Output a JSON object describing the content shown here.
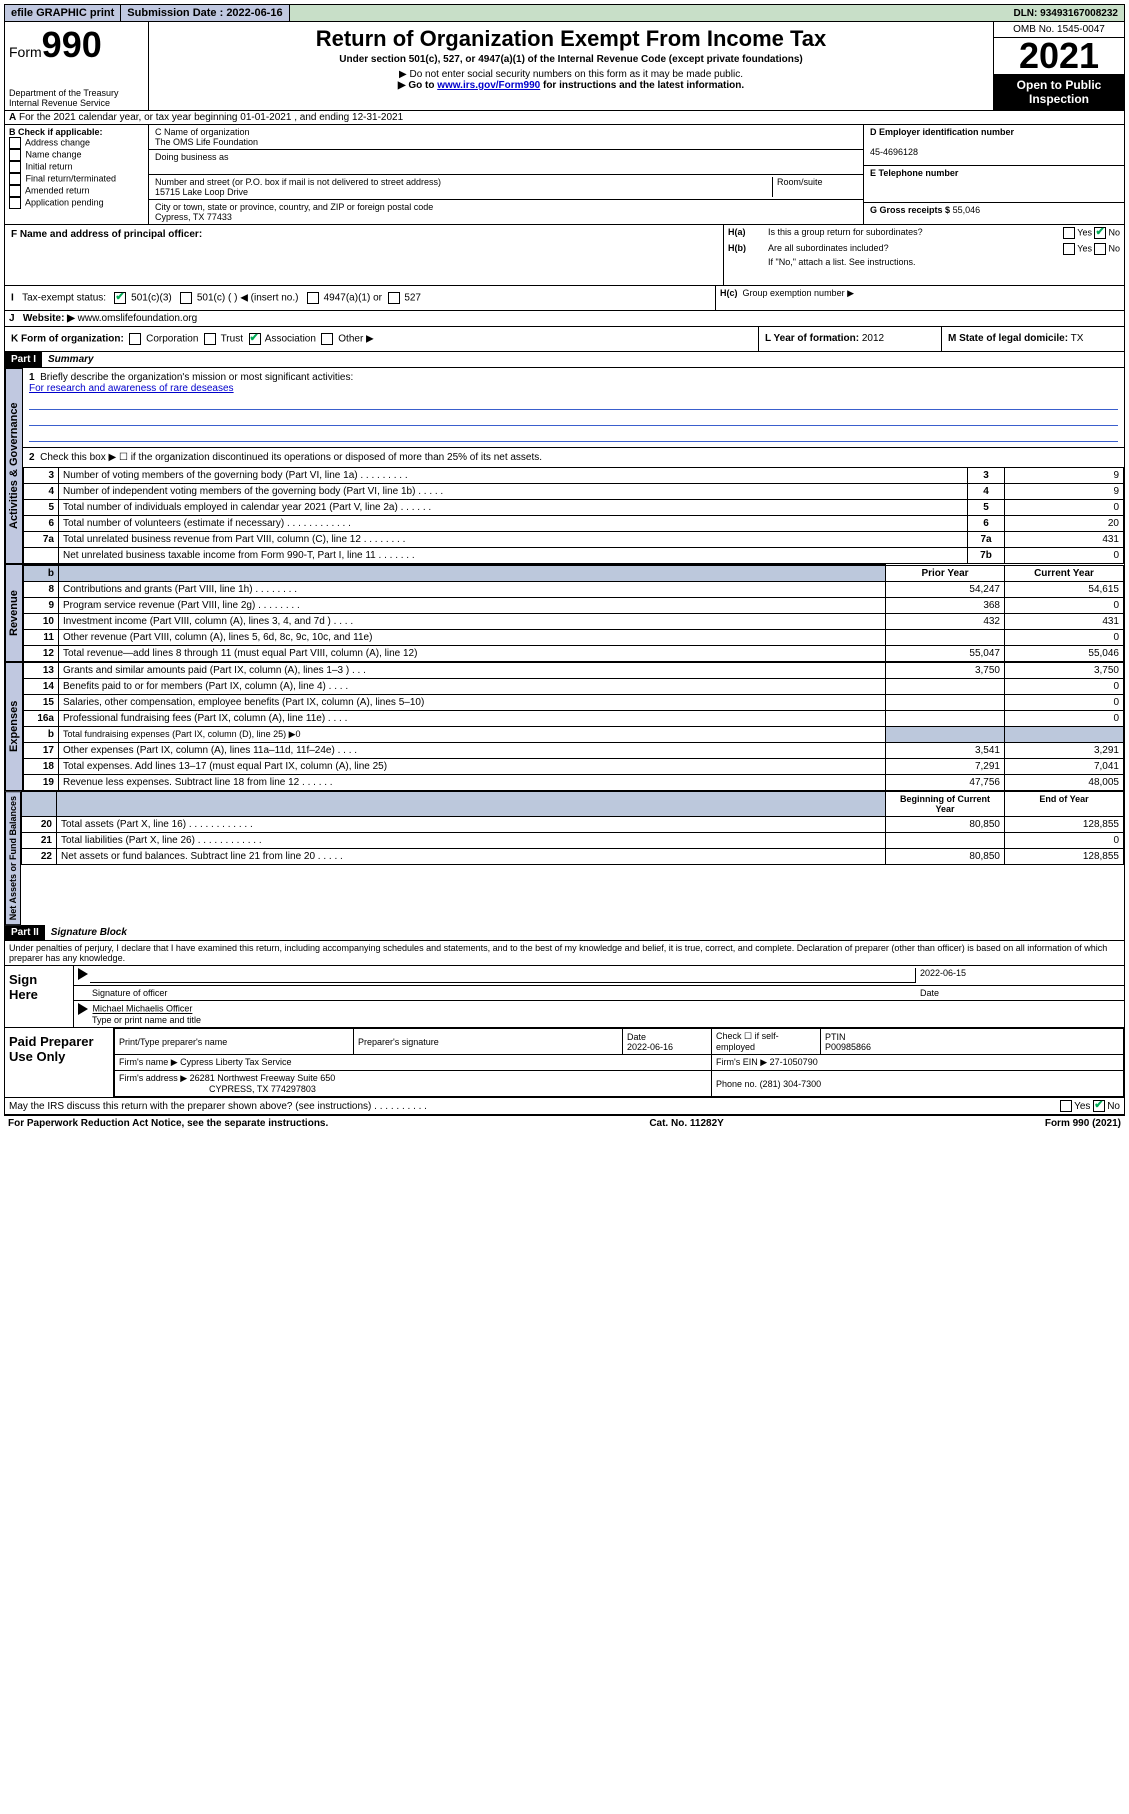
{
  "topbar": {
    "efile": "efile GRAPHIC print",
    "submission_label": "Submission Date : 2022-06-16",
    "dln": "DLN: 93493167008232"
  },
  "header": {
    "form_label": "Form",
    "form_number": "990",
    "title": "Return of Organization Exempt From Income Tax",
    "subtitle": "Under section 501(c), 527, or 4947(a)(1) of the Internal Revenue Code (except private foundations)",
    "note1": "▶ Do not enter social security numbers on this form as it may be made public.",
    "note2_pre": "▶ Go to ",
    "note2_link": "www.irs.gov/Form990",
    "note2_post": " for instructions and the latest information.",
    "dept": "Department of the Treasury",
    "irs": "Internal Revenue Service",
    "omb": "OMB No. 1545-0047",
    "year": "2021",
    "open": "Open to Public Inspection"
  },
  "rowA": "For the 2021 calendar year, or tax year beginning 01-01-2021   , and ending 12-31-2021",
  "boxB": {
    "title": "B Check if applicable:",
    "items": [
      "Address change",
      "Name change",
      "Initial return",
      "Final return/terminated",
      "Amended return",
      "Application pending"
    ]
  },
  "boxC": {
    "label_name": "C Name of organization",
    "name": "The OMS Life Foundation",
    "dba_label": "Doing business as",
    "addr_label": "Number and street (or P.O. box if mail is not delivered to street address)",
    "room_label": "Room/suite",
    "addr": "15715 Lake Loop Drive",
    "city_label": "City or town, state or province, country, and ZIP or foreign postal code",
    "city": "Cypress, TX  77433"
  },
  "boxD": {
    "label": "D Employer identification number",
    "value": "45-4696128"
  },
  "boxE": {
    "label": "E Telephone number",
    "value": ""
  },
  "boxG": {
    "label": "G Gross receipts $",
    "value": "55,046"
  },
  "boxF": {
    "label": "F  Name and address of principal officer:"
  },
  "boxH": {
    "ha": "Is this a group return for subordinates?",
    "hb": "Are all subordinates included?",
    "hb_note": "If \"No,\" attach a list. See instructions.",
    "hc": "Group exemption number ▶",
    "yes": "Yes",
    "no": "No"
  },
  "boxI": {
    "label": "Tax-exempt status:",
    "o1": "501(c)(3)",
    "o2": "501(c) (  ) ◀ (insert no.)",
    "o3": "4947(a)(1) or",
    "o4": "527"
  },
  "boxJ": {
    "label": "Website: ▶",
    "value": "www.omslifefoundation.org"
  },
  "boxK": {
    "label": "K Form of organization:",
    "o1": "Corporation",
    "o2": "Trust",
    "o3": "Association",
    "o4": "Other ▶"
  },
  "boxL": {
    "label": "L Year of formation:",
    "value": "2012"
  },
  "boxM": {
    "label": "M State of legal domicile:",
    "value": "TX"
  },
  "part1": {
    "tag": "Part I",
    "title": "Summary"
  },
  "mission": {
    "q": "Briefly describe the organization's mission or most significant activities:",
    "a": "For research and awareness of rare deseases"
  },
  "line2": "Check this box ▶ ☐  if the organization discontinued its operations or disposed of more than 25% of its net assets.",
  "governance": [
    {
      "n": "3",
      "d": "Number of voting members of the governing body (Part VI, line 1a)   .    .    .    .    .    .    .    .    .",
      "b": "3",
      "v": "9"
    },
    {
      "n": "4",
      "d": "Number of independent voting members of the governing body (Part VI, line 1b)   .    .    .    .    .",
      "b": "4",
      "v": "9"
    },
    {
      "n": "5",
      "d": "Total number of individuals employed in calendar year 2021 (Part V, line 2a)   .    .    .    .    .    .",
      "b": "5",
      "v": "0"
    },
    {
      "n": "6",
      "d": "Total number of volunteers (estimate if necessary)   .    .    .    .    .    .    .    .    .    .    .    .",
      "b": "6",
      "v": "20"
    },
    {
      "n": "7a",
      "d": "Total unrelated business revenue from Part VIII, column (C), line 12   .    .    .    .    .    .    .    .",
      "b": "7a",
      "v": "431"
    },
    {
      "n": "",
      "d": "Net unrelated business taxable income from Form 990-T, Part I, line 11   .    .    .    .    .    .    .",
      "b": "7b",
      "v": "0"
    }
  ],
  "col_headers": {
    "prior": "Prior Year",
    "current": "Current Year"
  },
  "revenue": [
    {
      "n": "8",
      "d": "Contributions and grants (Part VIII, line 1h)   .    .    .    .    .    .    .    .",
      "p": "54,247",
      "c": "54,615"
    },
    {
      "n": "9",
      "d": "Program service revenue (Part VIII, line 2g)   .    .    .    .    .    .    .    .",
      "p": "368",
      "c": "0"
    },
    {
      "n": "10",
      "d": "Investment income (Part VIII, column (A), lines 3, 4, and 7d )   .    .    .    .",
      "p": "432",
      "c": "431"
    },
    {
      "n": "11",
      "d": "Other revenue (Part VIII, column (A), lines 5, 6d, 8c, 9c, 10c, and 11e)",
      "p": "",
      "c": "0"
    },
    {
      "n": "12",
      "d": "Total revenue—add lines 8 through 11 (must equal Part VIII, column (A), line 12)",
      "p": "55,047",
      "c": "55,046"
    }
  ],
  "expenses": [
    {
      "n": "13",
      "d": "Grants and similar amounts paid (Part IX, column (A), lines 1–3 )   .    .    .",
      "p": "3,750",
      "c": "3,750"
    },
    {
      "n": "14",
      "d": "Benefits paid to or for members (Part IX, column (A), line 4)   .    .    .    .",
      "p": "",
      "c": "0"
    },
    {
      "n": "15",
      "d": "Salaries, other compensation, employee benefits (Part IX, column (A), lines 5–10)",
      "p": "",
      "c": "0"
    },
    {
      "n": "16a",
      "d": "Professional fundraising fees (Part IX, column (A), line 11e)   .    .    .    .",
      "p": "",
      "c": "0"
    },
    {
      "n": "b",
      "d": "Total fundraising expenses (Part IX, column (D), line 25) ▶0",
      "shade": true
    },
    {
      "n": "17",
      "d": "Other expenses (Part IX, column (A), lines 11a–11d, 11f–24e)   .    .    .    .",
      "p": "3,541",
      "c": "3,291"
    },
    {
      "n": "18",
      "d": "Total expenses. Add lines 13–17 (must equal Part IX, column (A), line 25)",
      "p": "7,291",
      "c": "7,041"
    },
    {
      "n": "19",
      "d": "Revenue less expenses. Subtract line 18 from line 12   .    .    .    .    .    .",
      "p": "47,756",
      "c": "48,005"
    }
  ],
  "bal_headers": {
    "beg": "Beginning of Current Year",
    "end": "End of Year"
  },
  "balances": [
    {
      "n": "20",
      "d": "Total assets (Part X, line 16)   .    .    .    .    .    .    .    .    .    .    .    .",
      "p": "80,850",
      "c": "128,855"
    },
    {
      "n": "21",
      "d": "Total liabilities (Part X, line 26)   .    .    .    .    .    .    .    .    .    .    .    .",
      "p": "",
      "c": "0"
    },
    {
      "n": "22",
      "d": "Net assets or fund balances. Subtract line 21 from line 20   .    .    .    .    .",
      "p": "80,850",
      "c": "128,855"
    }
  ],
  "part2": {
    "tag": "Part II",
    "title": "Signature Block"
  },
  "perjury": "Under penalties of perjury, I declare that I have examined this return, including accompanying schedules and statements, and to the best of my knowledge and belief, it is true, correct, and complete. Declaration of preparer (other than officer) is based on all information of which preparer has any knowledge.",
  "sign": {
    "here": "Sign Here",
    "sig_label": "Signature of officer",
    "date": "2022-06-15",
    "date_label": "Date",
    "name": "Michael Michaelis  Officer",
    "name_label": "Type or print name and title"
  },
  "prep": {
    "here": "Paid Preparer Use Only",
    "h1": "Print/Type preparer's name",
    "h2": "Preparer's signature",
    "h3": "Date",
    "h4": "Check ☐ if self-employed",
    "h5": "PTIN",
    "date": "2022-06-16",
    "ptin": "P00985866",
    "firm_label": "Firm's name   ▶",
    "firm": "Cypress Liberty Tax Service",
    "ein_label": "Firm's EIN ▶",
    "ein": "27-1050790",
    "addr_label": "Firm's address ▶",
    "addr1": "26281 Northwest Freeway Suite 650",
    "addr2": "CYPRESS, TX  774297803",
    "phone_label": "Phone no.",
    "phone": "(281) 304-7300"
  },
  "discuss": "May the IRS discuss this return with the preparer shown above? (see instructions)   .    .    .    .    .    .    .    .    .    .",
  "footer": {
    "left": "For Paperwork Reduction Act Notice, see the separate instructions.",
    "mid": "Cat. No. 11282Y",
    "right": "Form 990 (2021)"
  },
  "vtabs": {
    "gov": "Activities & Governance",
    "rev": "Revenue",
    "exp": "Expenses",
    "bal": "Net Assets or Fund Balances"
  }
}
